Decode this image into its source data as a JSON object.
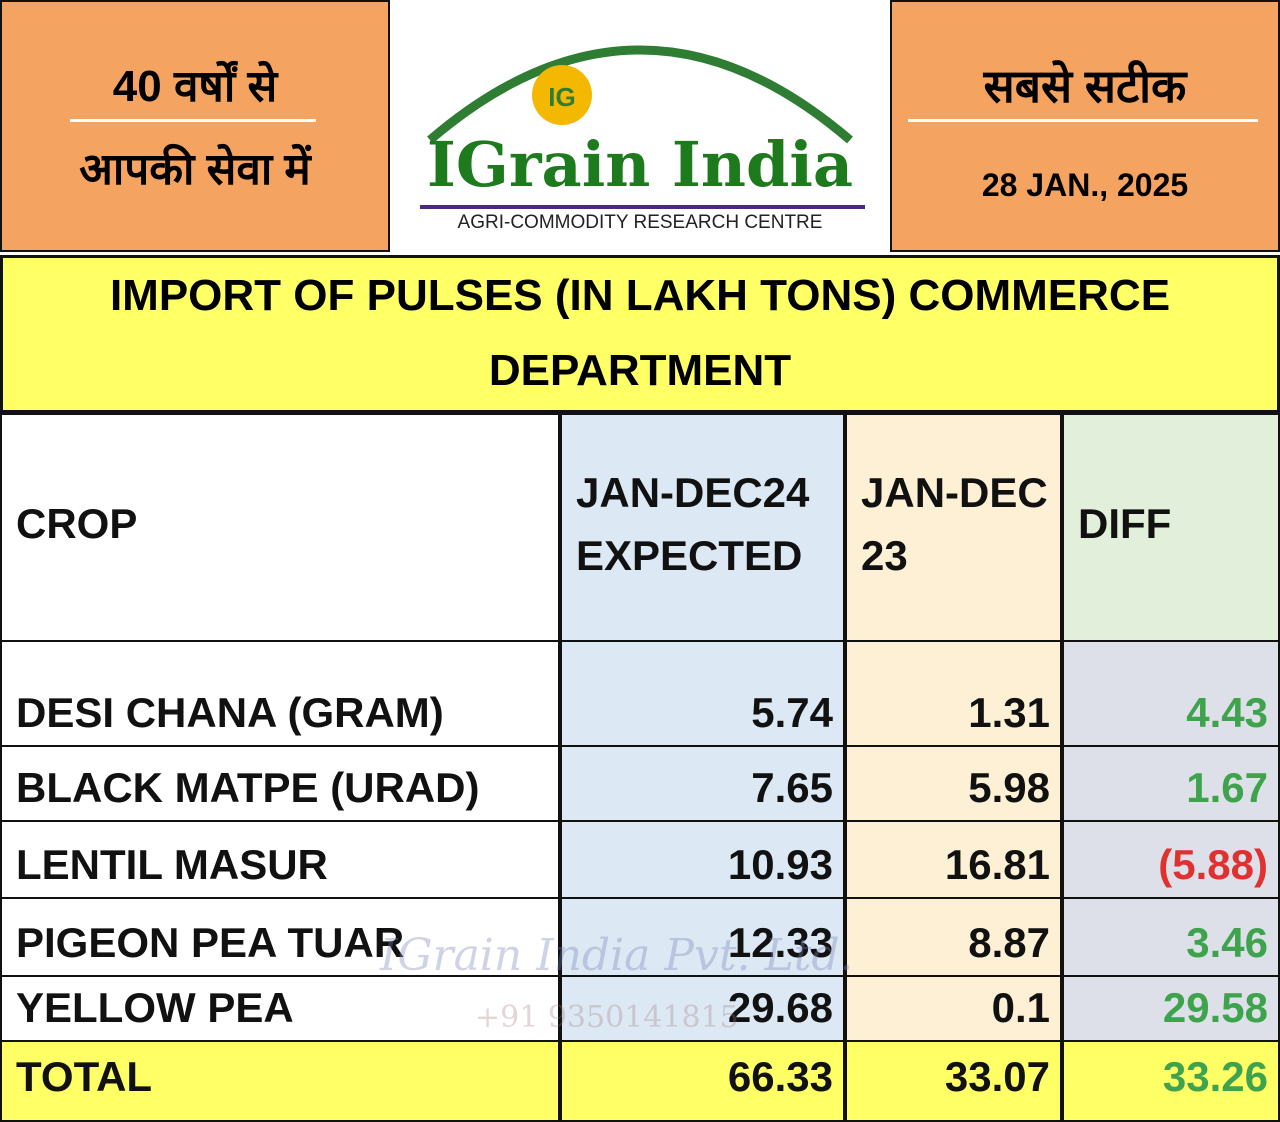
{
  "header": {
    "left_lines": [
      "40 वर्षों से",
      "आपकी सेवा में"
    ],
    "logo_title": "IGrain India",
    "logo_badge": "IG",
    "logo_subtitle": "AGRI-COMMODITY RESEARCH CENTRE",
    "right_title": "सबसे सटीक",
    "date": "28 JAN., 2025"
  },
  "table": {
    "title": "IMPORT OF PULSES  (IN LAKH TONS) COMMERCE DEPARTMENT",
    "columns": [
      "CROP",
      "JAN-DEC24 EXPECTED",
      "JAN-DEC 23",
      "DIFF"
    ],
    "rows": [
      {
        "cells": [
          "DESI CHANA (GRAM)",
          "5.74",
          "1.31",
          "4.43"
        ],
        "diff_color": "#3fa34d"
      },
      {
        "cells": [
          "BLACK MATPE (URAD)",
          "7.65",
          "5.98",
          "1.67"
        ],
        "diff_color": "#3fa34d"
      },
      {
        "cells": [
          "LENTIL MASUR",
          "10.93",
          "16.81",
          "(5.88)"
        ],
        "diff_color": "#e03030"
      },
      {
        "cells": [
          "PIGEON PEA TUAR",
          "12.33",
          "8.87",
          "3.46"
        ],
        "diff_color": "#3fa34d"
      },
      {
        "cells": [
          "YELLOW PEA",
          "29.68",
          "0.1",
          "29.58"
        ],
        "diff_color": "#3fa34d"
      }
    ],
    "total": {
      "cells": [
        "TOTAL",
        "66.33",
        "33.07",
        "33.26"
      ],
      "diff_color": "#3fa34d"
    }
  },
  "watermark": {
    "lines": [
      "IGrain India Pvt. Ltd.",
      "+91 9350141815"
    ]
  }
}
